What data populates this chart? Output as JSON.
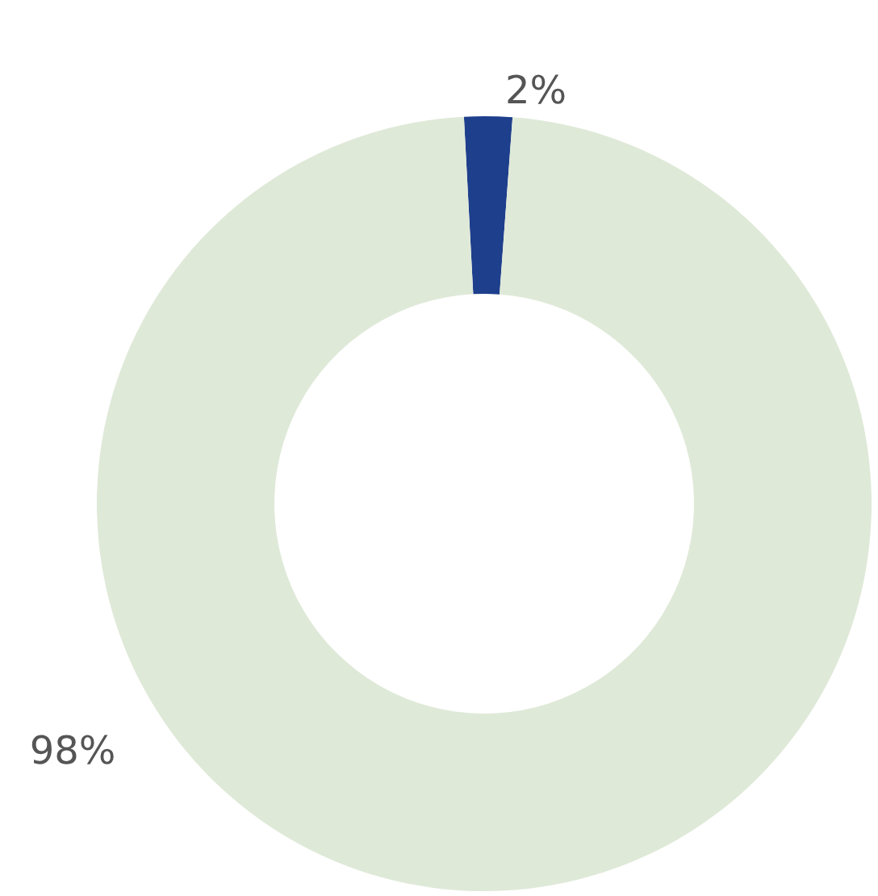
{
  "chart_data": {
    "type": "donut",
    "categories": [
      null,
      null
    ],
    "values": [
      2,
      98
    ],
    "colors": [
      "#1e3f8c",
      "#dfe9d8"
    ],
    "value_labels": [
      "2%",
      "98%"
    ]
  }
}
